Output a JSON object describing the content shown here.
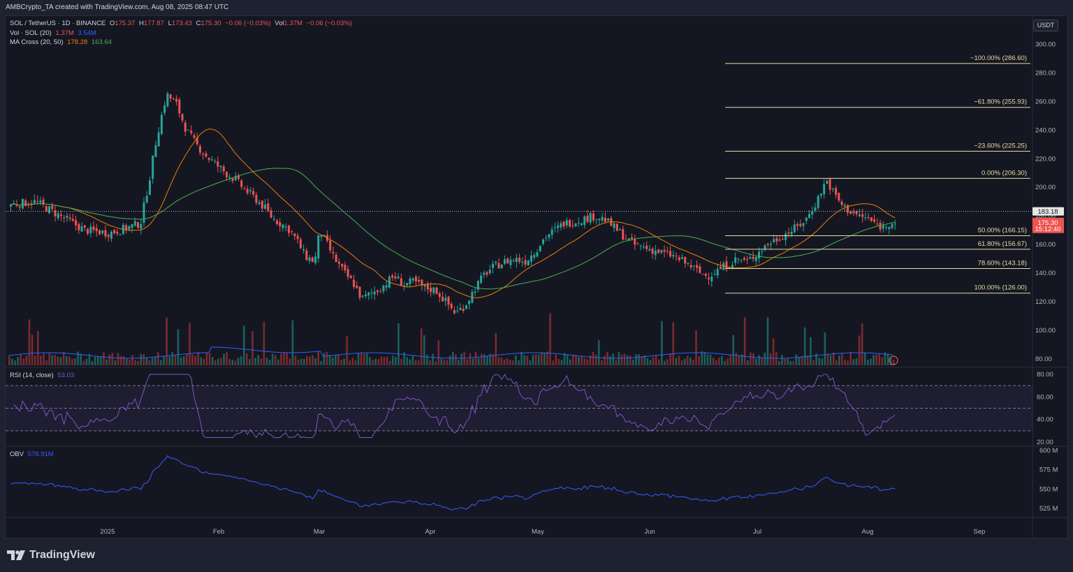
{
  "header": {
    "credit": "AMBCrypto_TA created with TradingView.com, Aug 08, 2025 08:47 UTC"
  },
  "legend": {
    "symbol": "SOL / TetherUS · 1D · BINANCE",
    "o_label": "O",
    "o": "175.37",
    "h_label": "H",
    "h": "177.87",
    "l_label": "L",
    "l": "173.43",
    "c_label": "C",
    "c": "175.30",
    "chg": "−0.06 (−0.03%)",
    "vol_label": "Vol",
    "vol": "1.37M",
    "vol_chg": "−0.06 (−0.03%)",
    "vol_ind": "Vol · SOL (20)",
    "vol_ind_v1": "1.37M",
    "vol_ind_v2": "3.54M",
    "ma": "MA Cross (20, 50)",
    "ma_v1": "178.28",
    "ma_v2": "163.64",
    "rsi": "RSI (14, close)",
    "rsi_v": "53.03",
    "obv": "OBV",
    "obv_v": "578.91M"
  },
  "currency_button": "USDT",
  "price_badges": {
    "last": "183.18",
    "current": "175.30",
    "countdown": "15:12:40"
  },
  "branding": "TradingView",
  "colors": {
    "bg": "#141722",
    "up": "#26a69a",
    "down": "#ef5350",
    "ma20": "#f57c00",
    "ma50": "#4caf50",
    "fib": "#e9dca1",
    "rsi": "#7e57c2",
    "obv": "#3d5afe",
    "vol_ma": "#2962ff"
  },
  "chart_data": {
    "type": "candlestick",
    "price_axis": {
      "ticks": [
        "300.00",
        "280.00",
        "260.00",
        "240.00",
        "220.00",
        "200.00",
        "180.00",
        "160.00",
        "140.00",
        "120.00",
        "100.00",
        "80.00"
      ],
      "range": [
        78,
        310
      ]
    },
    "x_axis": {
      "labels": [
        "2025",
        "Feb",
        "Mar",
        "Apr",
        "May",
        "Jun",
        "Jul",
        "Aug",
        "Sep"
      ]
    },
    "fib_levels": [
      {
        "label": "−100.00% (286.60)",
        "value": 286.6
      },
      {
        "label": "−61.80% (255.93)",
        "value": 255.93
      },
      {
        "label": "−23.60% (225.25)",
        "value": 225.25
      },
      {
        "label": "0.00% (206.30)",
        "value": 206.3
      },
      {
        "label": "50.00% (166.15)",
        "value": 166.15
      },
      {
        "label": "61.80% (156.67)",
        "value": 156.67
      },
      {
        "label": "78.60% (143.18)",
        "value": 143.18
      },
      {
        "label": "100.00% (126.00)",
        "value": 126.0
      }
    ],
    "reference_line": 183.18,
    "close_path": [
      [
        0,
        190
      ],
      [
        6,
        196
      ],
      [
        12,
        186
      ],
      [
        18,
        176
      ],
      [
        24,
        178
      ],
      [
        30,
        166
      ],
      [
        36,
        170
      ],
      [
        42,
        164
      ],
      [
        48,
        172
      ],
      [
        54,
        170
      ],
      [
        60,
        178
      ],
      [
        66,
        182
      ],
      [
        72,
        186
      ],
      [
        78,
        178
      ],
      [
        84,
        180
      ],
      [
        90,
        182
      ],
      [
        96,
        176
      ],
      [
        104,
        200
      ],
      [
        110,
        232
      ],
      [
        116,
        246
      ],
      [
        122,
        244
      ],
      [
        128,
        240
      ],
      [
        134,
        246
      ],
      [
        140,
        236
      ],
      [
        146,
        230
      ],
      [
        152,
        226
      ],
      [
        158,
        208
      ],
      [
        164,
        214
      ],
      [
        170,
        210
      ],
      [
        176,
        200
      ],
      [
        182,
        198
      ],
      [
        188,
        212
      ],
      [
        194,
        214
      ],
      [
        200,
        210
      ],
      [
        206,
        188
      ],
      [
        212,
        172
      ],
      [
        218,
        158
      ],
      [
        224,
        148
      ],
      [
        230,
        145
      ],
      [
        236,
        135
      ],
      [
        242,
        134
      ],
      [
        248,
        164
      ],
      [
        254,
        186
      ],
      [
        260,
        158
      ],
      [
        266,
        150
      ],
      [
        272,
        142
      ],
      [
        278,
        136
      ],
      [
        284,
        128
      ],
      [
        290,
        118
      ],
      [
        296,
        114
      ],
      [
        302,
        102
      ],
      [
        308,
        92
      ],
      [
        314,
        96
      ],
      [
        320,
        98
      ],
      [
        326,
        108
      ],
      [
        332,
        112
      ],
      [
        338,
        116
      ],
      [
        344,
        122
      ],
      [
        350,
        128
      ],
      [
        356,
        136
      ],
      [
        362,
        132
      ],
      [
        368,
        136
      ],
      [
        374,
        128
      ],
      [
        380,
        124
      ],
      [
        386,
        108
      ],
      [
        392,
        96
      ],
      [
        398,
        84
      ],
      [
        404,
        82
      ],
      [
        410,
        80
      ],
      [
        416,
        82
      ],
      [
        422,
        80
      ],
      [
        428,
        78
      ],
      [
        434,
        82
      ],
      [
        440,
        76
      ],
      [
        446,
        70
      ],
      [
        452,
        66
      ],
      [
        458,
        62
      ],
      [
        464,
        60
      ],
      [
        470,
        58
      ],
      [
        476,
        60
      ],
      [
        482,
        58
      ],
      [
        488,
        54
      ],
      [
        494,
        56
      ],
      [
        500,
        62
      ],
      [
        506,
        66
      ],
      [
        512,
        72
      ],
      [
        518,
        78
      ],
      [
        524,
        80
      ],
      [
        530,
        86
      ],
      [
        536,
        96
      ],
      [
        542,
        102
      ],
      [
        548,
        108
      ],
      [
        554,
        118
      ],
      [
        560,
        126
      ],
      [
        566,
        136
      ],
      [
        572,
        140
      ],
      [
        578,
        146
      ],
      [
        584,
        150
      ],
      [
        590,
        156
      ],
      [
        596,
        158
      ],
      [
        602,
        156
      ],
      [
        608,
        160
      ],
      [
        614,
        158
      ],
      [
        620,
        156
      ],
      [
        626,
        150
      ],
      [
        632,
        146
      ],
      [
        638,
        140
      ],
      [
        644,
        138
      ],
      [
        650,
        130
      ],
      [
        656,
        128
      ],
      [
        662,
        130
      ],
      [
        668,
        128
      ],
      [
        674,
        130
      ],
      [
        680,
        126
      ],
      [
        686,
        124
      ],
      [
        692,
        128
      ],
      [
        698,
        126
      ],
      [
        704,
        122
      ],
      [
        710,
        120
      ],
      [
        716,
        122
      ],
      [
        722,
        120
      ],
      [
        728,
        116
      ],
      [
        734,
        112
      ],
      [
        740,
        110
      ],
      [
        746,
        106
      ],
      [
        752,
        102
      ],
      [
        758,
        106
      ],
      [
        764,
        104
      ],
      [
        770,
        100
      ],
      [
        776,
        96
      ],
      [
        782,
        98
      ],
      [
        788,
        94
      ],
      [
        794,
        92
      ],
      [
        800,
        90
      ],
      [
        806,
        88
      ],
      [
        812,
        90
      ],
      [
        818,
        86
      ],
      [
        824,
        82
      ],
      [
        830,
        80
      ],
      [
        836,
        78
      ],
      [
        842,
        80
      ],
      [
        848,
        76
      ],
      [
        854,
        72
      ],
      [
        860,
        70
      ],
      [
        866,
        68
      ],
      [
        872,
        66
      ],
      [
        878,
        62
      ],
      [
        884,
        58
      ],
      [
        890,
        62
      ],
      [
        896,
        66
      ],
      [
        902,
        70
      ],
      [
        908,
        64
      ],
      [
        914,
        60
      ],
      [
        920,
        56
      ],
      [
        926,
        52
      ]
    ]
  }
}
